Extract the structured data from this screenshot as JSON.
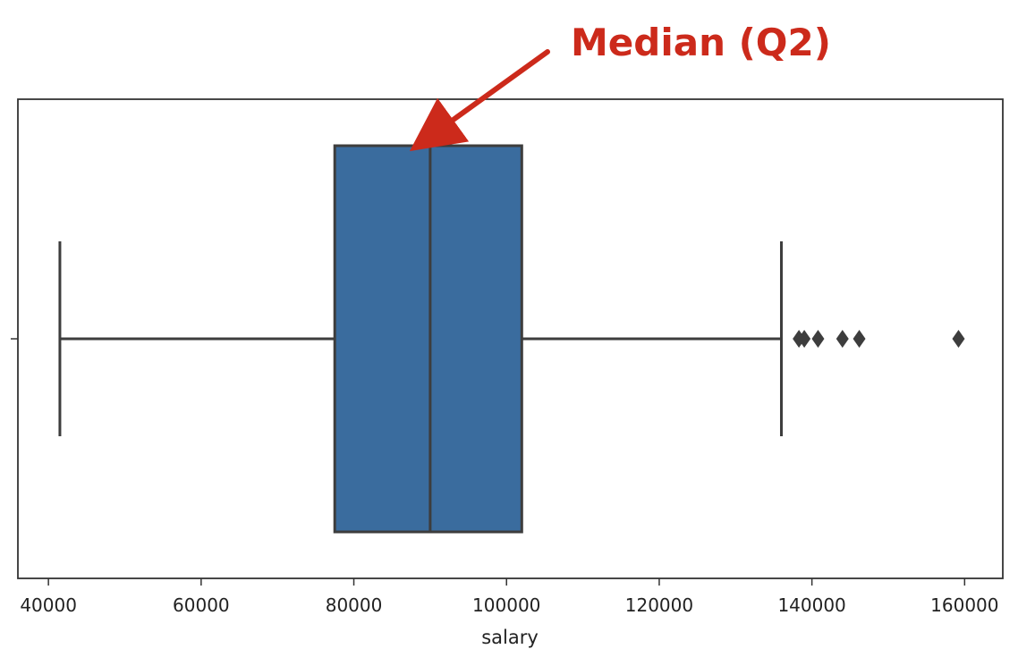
{
  "chart_data": {
    "type": "box",
    "title": "",
    "xlabel": "salary",
    "ylabel": "",
    "xlim": [
      36000,
      165000
    ],
    "xticks": [
      40000,
      60000,
      80000,
      100000,
      120000,
      140000,
      160000
    ],
    "xtick_labels": [
      "40000",
      "60000",
      "80000",
      "100000",
      "120000",
      "140000",
      "160000"
    ],
    "grid": false,
    "box": {
      "whisker_low": 41500,
      "q1": 77500,
      "median": 90000,
      "q3": 102000,
      "whisker_high": 136000,
      "fill_color": "#3a6c9e",
      "line_color": "#3d3d3d"
    },
    "outliers": [
      138300,
      139000,
      140800,
      144000,
      146200,
      159200
    ],
    "annotations": [
      {
        "text": "Median (Q2)",
        "color": "#cc2a1b",
        "points_to": "median"
      }
    ]
  }
}
